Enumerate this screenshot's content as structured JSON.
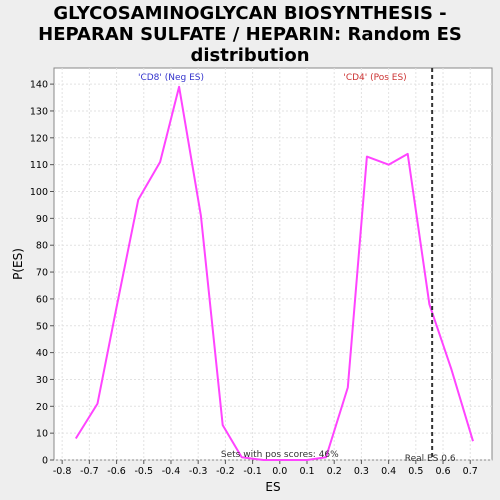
{
  "chart_data": {
    "type": "line",
    "title_lines": [
      "GLYCOSAMINOGLYCAN BIOSYNTHESIS -",
      "HEPARAN SULFATE / HEPARIN: Random ES",
      "distribution"
    ],
    "xlabel": "ES",
    "ylabel": "P(ES)",
    "xlim": [
      -0.83,
      0.78
    ],
    "ylim": [
      0,
      146
    ],
    "x_ticks": [
      -0.8,
      -0.7,
      -0.6,
      -0.5,
      -0.4,
      -0.3,
      -0.2,
      -0.1,
      0.0,
      0.1,
      0.2,
      0.3,
      0.4,
      0.5,
      0.6,
      0.7
    ],
    "x_tick_labels": [
      "-0.8",
      "-0.7",
      "-0.6",
      "-0.5",
      "-0.4",
      "-0.3",
      "-0.2",
      "-0.1",
      "0.0",
      "0.1",
      "0.2",
      "0.3",
      "0.4",
      "0.5",
      "0.6",
      "0.7"
    ],
    "y_ticks": [
      0,
      10,
      20,
      30,
      40,
      50,
      60,
      70,
      80,
      90,
      100,
      110,
      120,
      130,
      140
    ],
    "y_tick_labels": [
      "0",
      "10",
      "20",
      "30",
      "40",
      "50",
      "60",
      "70",
      "80",
      "90",
      "100",
      "110",
      "120",
      "130",
      "140"
    ],
    "grid": true,
    "series": [
      {
        "color": "#ff44ff",
        "x": [
          -0.75,
          -0.67,
          -0.6,
          -0.52,
          -0.44,
          -0.37,
          -0.29,
          -0.21,
          -0.14,
          -0.06,
          0.02,
          0.1,
          0.17,
          0.25,
          0.32,
          0.4,
          0.47,
          0.55,
          0.63,
          0.71
        ],
        "y": [
          8,
          21,
          57,
          97,
          111,
          139,
          91,
          13,
          1,
          0,
          0,
          0,
          1,
          27,
          113,
          110,
          114,
          58,
          34,
          7
        ]
      }
    ],
    "vline": {
      "x": 0.56,
      "color": "#333333",
      "style": "dashed"
    },
    "annotations": {
      "neg_label": "'CD8' (Neg ES)",
      "neg_color": "#3333cc",
      "pos_label": "'CD4' (Pos ES)",
      "pos_color": "#cc3333",
      "pos_scores": "Sets with pos scores: 46%",
      "real_es": "Real ES 0.6"
    }
  }
}
